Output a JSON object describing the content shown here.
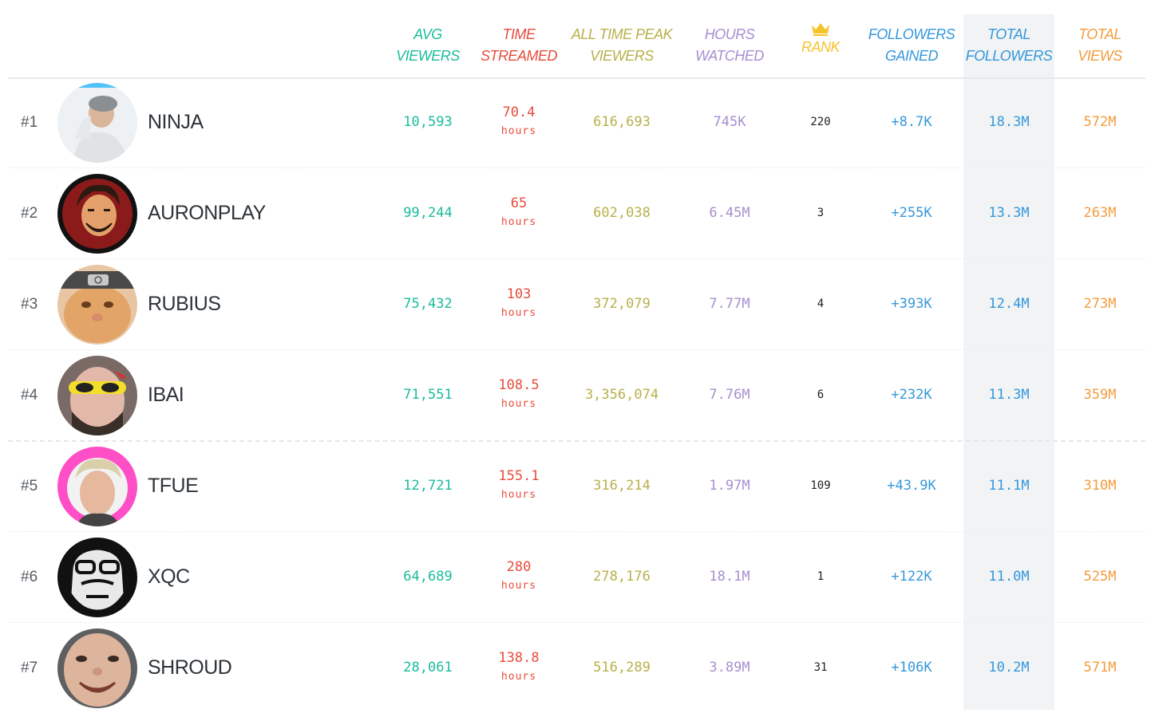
{
  "colors": {
    "avg": "#1abc9c",
    "time": "#e74c3c",
    "peak": "#b8b04a",
    "hours": "#a68fd0",
    "rank": "#f6c32a",
    "gained": "#3498db",
    "total_followers": "#3498db",
    "total_views": "#f39c3e"
  },
  "headers": {
    "avg_l1": "AVG",
    "avg_l2": "VIEWERS",
    "time_l1": "TIME",
    "time_l2": "STREAMED",
    "peak_l1": "ALL TIME PEAK",
    "peak_l2": "VIEWERS",
    "hours_l1": "HOURS",
    "hours_l2": "WATCHED",
    "rank_icon": "crown-icon",
    "rank_l2": "RANK",
    "gained_l1": "FOLLOWERS",
    "gained_l2": "GAINED",
    "tf_l1": "TOTAL",
    "tf_l2": "FOLLOWERS",
    "tv_l1": "TOTAL",
    "tv_l2": "VIEWS"
  },
  "rows": [
    {
      "rank": "#1",
      "name": "NINJA",
      "avg": "10,593",
      "time": "70.4",
      "time_unit": "hours",
      "peak": "616,693",
      "hours": "745K",
      "rank_value": "220",
      "gained": "+8.7K",
      "total_followers": "18.3M",
      "total_views": "572M"
    },
    {
      "rank": "#2",
      "name": "AURONPLAY",
      "avg": "99,244",
      "time": "65",
      "time_unit": "hours",
      "peak": "602,038",
      "hours": "6.45M",
      "rank_value": "3",
      "gained": "+255K",
      "total_followers": "13.3M",
      "total_views": "263M"
    },
    {
      "rank": "#3",
      "name": "RUBIUS",
      "avg": "75,432",
      "time": "103",
      "time_unit": "hours",
      "peak": "372,079",
      "hours": "7.77M",
      "rank_value": "4",
      "gained": "+393K",
      "total_followers": "12.4M",
      "total_views": "273M"
    },
    {
      "rank": "#4",
      "name": "IBAI",
      "avg": "71,551",
      "time": "108.5",
      "time_unit": "hours",
      "peak": "3,356,074",
      "hours": "7.76M",
      "rank_value": "6",
      "gained": "+232K",
      "total_followers": "11.3M",
      "total_views": "359M"
    },
    {
      "rank": "#5",
      "name": "TFUE",
      "avg": "12,721",
      "time": "155.1",
      "time_unit": "hours",
      "peak": "316,214",
      "hours": "1.97M",
      "rank_value": "109",
      "gained": "+43.9K",
      "total_followers": "11.1M",
      "total_views": "310M"
    },
    {
      "rank": "#6",
      "name": "XQC",
      "avg": "64,689",
      "time": "280",
      "time_unit": "hours",
      "peak": "278,176",
      "hours": "18.1M",
      "rank_value": "1",
      "gained": "+122K",
      "total_followers": "11.0M",
      "total_views": "525M"
    },
    {
      "rank": "#7",
      "name": "SHROUD",
      "avg": "28,061",
      "time": "138.8",
      "time_unit": "hours",
      "peak": "516,289",
      "hours": "3.89M",
      "rank_value": "31",
      "gained": "+106K",
      "total_followers": "10.2M",
      "total_views": "571M"
    }
  ]
}
